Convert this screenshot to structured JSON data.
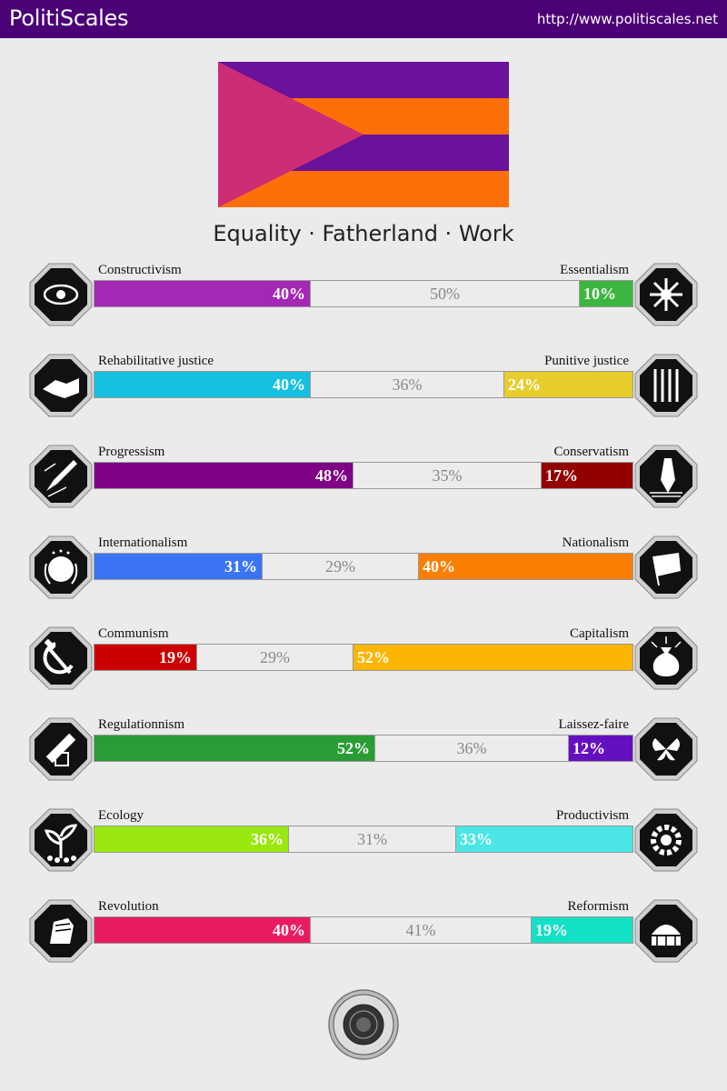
{
  "header": {
    "brand": "PolitiScales",
    "url": "http://www.politiscales.net"
  },
  "slogan": "Equality · Fatherland · Work",
  "flag": {
    "colors": {
      "top_stripe": "#6a1299",
      "orange_stripe": "#fc6f07",
      "triangle": "#cc2d74"
    }
  },
  "axes": [
    {
      "left_label": "Constructivism",
      "right_label": "Essentialism",
      "left": 40,
      "center": 50,
      "right": 10,
      "left_pct": "40%",
      "center_pct": "50%",
      "right_pct": "10%",
      "left_color": "#a328b3",
      "right_color": "#3db640",
      "left_icon": "eye-icon",
      "right_icon": "flower-icon"
    },
    {
      "left_label": "Rehabilitative justice",
      "right_label": "Punitive justice",
      "left": 40,
      "center": 36,
      "right": 24,
      "left_pct": "40%",
      "center_pct": "36%",
      "right_pct": "24%",
      "left_color": "#17bfe0",
      "right_color": "#e7cd2c",
      "left_icon": "handshake-icon",
      "right_icon": "prison-bars-icon"
    },
    {
      "left_label": "Progressism",
      "right_label": "Conservatism",
      "left": 48,
      "center": 35,
      "right": 17,
      "left_pct": "48%",
      "center_pct": "35%",
      "right_pct": "17%",
      "left_color": "#7d0384",
      "right_color": "#930000",
      "left_icon": "rocket-icon",
      "right_icon": "fountain-pen-icon"
    },
    {
      "left_label": "Internationalism",
      "right_label": "Nationalism",
      "left": 31,
      "center": 29,
      "right": 40,
      "left_pct": "31%",
      "center_pct": "29%",
      "right_pct": "40%",
      "left_color": "#3b74f2",
      "right_color": "#fb7f02",
      "left_icon": "globe-icon",
      "right_icon": "flag-icon"
    },
    {
      "left_label": "Communism",
      "right_label": "Capitalism",
      "left": 19,
      "center": 29,
      "right": 52,
      "left_pct": "19%",
      "center_pct": "29%",
      "right_pct": "52%",
      "left_color": "#cc0001",
      "right_color": "#fcb500",
      "left_icon": "hammer-sickle-icon",
      "right_icon": "money-bag-icon"
    },
    {
      "left_label": "Regulationnism",
      "right_label": "Laissez-faire",
      "left": 52,
      "center": 36,
      "right": 12,
      "left_pct": "52%",
      "center_pct": "36%",
      "right_pct": "12%",
      "left_color": "#2a9c36",
      "right_color": "#6510c0",
      "left_icon": "ruler-icon",
      "right_icon": "butterflies-icon"
    },
    {
      "left_label": "Ecology",
      "right_label": "Productivism",
      "left": 36,
      "center": 31,
      "right": 33,
      "left_pct": "36%",
      "center_pct": "31%",
      "right_pct": "33%",
      "left_color": "#9ae70f",
      "right_color": "#4ce6e6",
      "left_icon": "plant-icon",
      "right_icon": "gear-icon"
    },
    {
      "left_label": "Revolution",
      "right_label": "Reformism",
      "left": 40,
      "center": 41,
      "right": 19,
      "left_pct": "40%",
      "center_pct": "41%",
      "right_pct": "19%",
      "left_color": "#ea1c61",
      "right_color": "#14e0c5",
      "left_icon": "fist-icon",
      "right_icon": "parliament-icon"
    }
  ]
}
